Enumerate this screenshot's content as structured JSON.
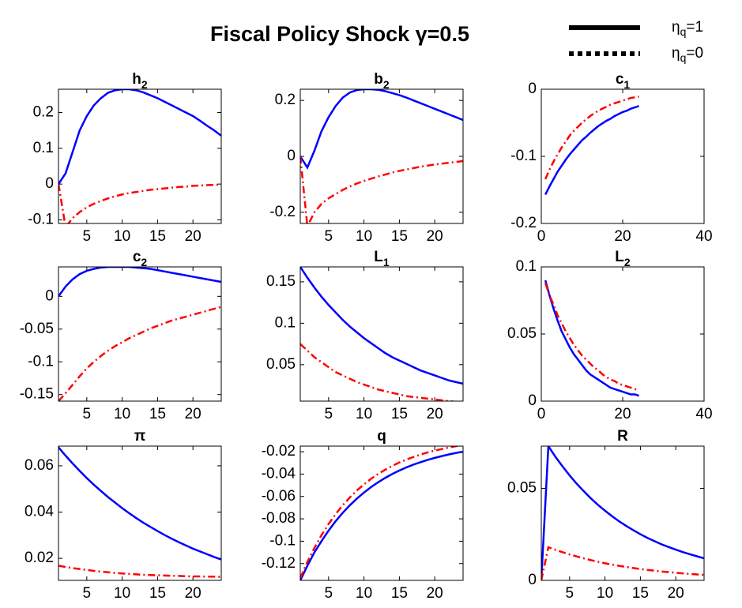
{
  "title": "Fiscal Policy Shock γ=0.5",
  "legend": [
    {
      "text": "η",
      "sub": "q",
      "suffix": "=1",
      "style": "solid",
      "color": "#000000"
    },
    {
      "text": "η",
      "sub": "q",
      "suffix": "=0",
      "style": "dotted",
      "color": "#000000"
    }
  ],
  "chart_data": [
    {
      "type": "line",
      "title": {
        "text": "h",
        "sub": "2"
      },
      "x": [
        1,
        2,
        3,
        4,
        5,
        6,
        7,
        8,
        9,
        10,
        11,
        12,
        13,
        14,
        15,
        16,
        17,
        18,
        19,
        20,
        21,
        22,
        23,
        24
      ],
      "xlim": [
        1,
        24
      ],
      "xticks": [
        5,
        10,
        15,
        20
      ],
      "ylim": [
        -0.11,
        0.265
      ],
      "yticks": [
        -0.1,
        0,
        0.1,
        0.2
      ],
      "series": [
        {
          "color": "#0000ff",
          "dash": "solid",
          "values": [
            0,
            0.03,
            0.09,
            0.15,
            0.19,
            0.22,
            0.24,
            0.255,
            0.262,
            0.265,
            0.265,
            0.262,
            0.256,
            0.248,
            0.24,
            0.23,
            0.22,
            0.21,
            0.2,
            0.19,
            0.177,
            0.163,
            0.15,
            0.135
          ]
        },
        {
          "color": "#ff0000",
          "dash": "dashdot",
          "values": [
            0,
            -0.12,
            -0.095,
            -0.078,
            -0.065,
            -0.055,
            -0.047,
            -0.04,
            -0.034,
            -0.029,
            -0.025,
            -0.022,
            -0.019,
            -0.016,
            -0.014,
            -0.012,
            -0.01,
            -0.008,
            -0.007,
            -0.005,
            -0.004,
            -0.003,
            -0.002,
            -0.002
          ]
        }
      ]
    },
    {
      "type": "line",
      "title": {
        "text": "b",
        "sub": "2"
      },
      "x": [
        1,
        2,
        3,
        4,
        5,
        6,
        7,
        8,
        9,
        10,
        11,
        12,
        13,
        14,
        15,
        16,
        17,
        18,
        19,
        20,
        21,
        22,
        23,
        24
      ],
      "xlim": [
        1,
        24
      ],
      "xticks": [
        5,
        10,
        15,
        20
      ],
      "ylim": [
        -0.24,
        0.24
      ],
      "yticks": [
        -0.2,
        0,
        0.2
      ],
      "series": [
        {
          "color": "#0000ff",
          "dash": "solid",
          "values": [
            0,
            -0.04,
            0.02,
            0.09,
            0.14,
            0.18,
            0.21,
            0.228,
            0.237,
            0.24,
            0.24,
            0.238,
            0.233,
            0.226,
            0.219,
            0.21,
            0.2,
            0.19,
            0.18,
            0.17,
            0.16,
            0.15,
            0.14,
            0.13
          ]
        },
        {
          "color": "#ff0000",
          "dash": "dashdot",
          "values": [
            0,
            -0.25,
            -0.2,
            -0.17,
            -0.15,
            -0.135,
            -0.12,
            -0.108,
            -0.097,
            -0.088,
            -0.08,
            -0.072,
            -0.065,
            -0.058,
            -0.052,
            -0.047,
            -0.042,
            -0.037,
            -0.033,
            -0.029,
            -0.026,
            -0.023,
            -0.02,
            -0.017
          ]
        }
      ]
    },
    {
      "type": "line",
      "title": {
        "text": "c",
        "sub": "1"
      },
      "x": [
        1,
        2,
        3,
        4,
        5,
        6,
        7,
        8,
        9,
        10,
        11,
        12,
        13,
        14,
        15,
        16,
        17,
        18,
        19,
        20,
        21,
        22,
        23,
        24
      ],
      "xlim": [
        0,
        40
      ],
      "xticks": [
        0,
        20,
        40
      ],
      "ylim": [
        -0.2,
        0
      ],
      "yticks": [
        -0.2,
        -0.1,
        0
      ],
      "series": [
        {
          "color": "#0000ff",
          "dash": "solid",
          "values": [
            -0.157,
            -0.145,
            -0.134,
            -0.123,
            -0.114,
            -0.105,
            -0.097,
            -0.09,
            -0.083,
            -0.076,
            -0.071,
            -0.065,
            -0.06,
            -0.055,
            -0.051,
            -0.047,
            -0.044,
            -0.04,
            -0.037,
            -0.034,
            -0.032,
            -0.029,
            -0.027,
            -0.025
          ]
        },
        {
          "color": "#ff0000",
          "dash": "dashdot",
          "values": [
            -0.134,
            -0.12,
            -0.108,
            -0.097,
            -0.087,
            -0.078,
            -0.069,
            -0.062,
            -0.056,
            -0.05,
            -0.045,
            -0.04,
            -0.036,
            -0.032,
            -0.029,
            -0.026,
            -0.023,
            -0.021,
            -0.019,
            -0.017,
            -0.015,
            -0.013,
            -0.012,
            -0.011
          ]
        }
      ]
    },
    {
      "type": "line",
      "title": {
        "text": "c",
        "sub": "2"
      },
      "x": [
        1,
        2,
        3,
        4,
        5,
        6,
        7,
        8,
        9,
        10,
        11,
        12,
        13,
        14,
        15,
        16,
        17,
        18,
        19,
        20,
        21,
        22,
        23,
        24
      ],
      "xlim": [
        1,
        24
      ],
      "xticks": [
        5,
        10,
        15,
        20
      ],
      "ylim": [
        -0.16,
        0.045
      ],
      "yticks": [
        -0.15,
        -0.1,
        -0.05,
        0
      ],
      "series": [
        {
          "color": "#0000ff",
          "dash": "solid",
          "values": [
            0,
            0.015,
            0.026,
            0.034,
            0.039,
            0.042,
            0.044,
            0.045,
            0.045,
            0.045,
            0.045,
            0.044,
            0.043,
            0.042,
            0.04,
            0.038,
            0.036,
            0.034,
            0.032,
            0.03,
            0.028,
            0.026,
            0.024,
            0.022
          ]
        },
        {
          "color": "#ff0000",
          "dash": "dashdot",
          "values": [
            -0.16,
            -0.148,
            -0.135,
            -0.122,
            -0.11,
            -0.1,
            -0.091,
            -0.083,
            -0.076,
            -0.07,
            -0.064,
            -0.059,
            -0.054,
            -0.049,
            -0.045,
            -0.041,
            -0.037,
            -0.034,
            -0.031,
            -0.028,
            -0.025,
            -0.022,
            -0.019,
            -0.016
          ]
        }
      ]
    },
    {
      "type": "line",
      "title": {
        "text": "L",
        "sub": "1"
      },
      "x": [
        1,
        2,
        3,
        4,
        5,
        6,
        7,
        8,
        9,
        10,
        11,
        12,
        13,
        14,
        15,
        16,
        17,
        18,
        19,
        20,
        21,
        22,
        23,
        24
      ],
      "xlim": [
        1,
        24
      ],
      "xticks": [
        5,
        10,
        15,
        20
      ],
      "ylim": [
        0.006,
        0.168
      ],
      "yticks": [
        0.05,
        0.1,
        0.15
      ],
      "series": [
        {
          "color": "#0000ff",
          "dash": "solid",
          "values": [
            0.168,
            0.155,
            0.143,
            0.132,
            0.122,
            0.113,
            0.104,
            0.096,
            0.089,
            0.082,
            0.076,
            0.07,
            0.064,
            0.059,
            0.055,
            0.051,
            0.047,
            0.043,
            0.04,
            0.037,
            0.034,
            0.031,
            0.029,
            0.027
          ]
        },
        {
          "color": "#ff0000",
          "dash": "dashdot",
          "values": [
            0.075,
            0.067,
            0.059,
            0.053,
            0.047,
            0.041,
            0.037,
            0.033,
            0.029,
            0.026,
            0.023,
            0.02,
            0.018,
            0.016,
            0.014,
            0.012,
            0.011,
            0.01,
            0.009,
            0.008,
            0.007,
            0.006,
            0.005,
            0.005
          ]
        }
      ]
    },
    {
      "type": "line",
      "title": {
        "text": "L",
        "sub": "2"
      },
      "x": [
        1,
        2,
        3,
        4,
        5,
        6,
        7,
        8,
        9,
        10,
        11,
        12,
        13,
        14,
        15,
        16,
        17,
        18,
        19,
        20,
        21,
        22,
        23,
        24
      ],
      "xlim": [
        0,
        40
      ],
      "xticks": [
        0,
        20,
        40
      ],
      "ylim": [
        0,
        0.1
      ],
      "yticks": [
        0,
        0.05,
        0.1
      ],
      "series": [
        {
          "color": "#0000ff",
          "dash": "solid",
          "values": [
            0.09,
            0.079,
            0.069,
            0.06,
            0.052,
            0.046,
            0.04,
            0.035,
            0.031,
            0.027,
            0.023,
            0.02,
            0.018,
            0.016,
            0.014,
            0.012,
            0.01,
            0.009,
            0.008,
            0.007,
            0.006,
            0.005,
            0.005,
            0.004
          ]
        },
        {
          "color": "#ff0000",
          "dash": "dashdot",
          "values": [
            0.088,
            0.079,
            0.072,
            0.064,
            0.058,
            0.052,
            0.047,
            0.042,
            0.038,
            0.034,
            0.031,
            0.028,
            0.025,
            0.023,
            0.02,
            0.018,
            0.016,
            0.015,
            0.013,
            0.012,
            0.011,
            0.01,
            0.009,
            0.008
          ]
        }
      ]
    },
    {
      "type": "line",
      "title": {
        "text": "π",
        "sub": ""
      },
      "x": [
        1,
        2,
        3,
        4,
        5,
        6,
        7,
        8,
        9,
        10,
        11,
        12,
        13,
        14,
        15,
        16,
        17,
        18,
        19,
        20,
        21,
        22,
        23,
        24
      ],
      "xlim": [
        1,
        24
      ],
      "xticks": [
        5,
        10,
        15,
        20
      ],
      "ylim": [
        0.0105,
        0.0685
      ],
      "yticks": [
        0.02,
        0.04,
        0.06
      ],
      "series": [
        {
          "color": "#0000ff",
          "dash": "solid",
          "values": [
            0.068,
            0.0644,
            0.061,
            0.0578,
            0.0547,
            0.0518,
            0.0491,
            0.0465,
            0.0441,
            0.0417,
            0.0395,
            0.0374,
            0.0354,
            0.0336,
            0.0318,
            0.0301,
            0.0285,
            0.027,
            0.0256,
            0.0242,
            0.023,
            0.0218,
            0.0206,
            0.0195
          ]
        },
        {
          "color": "#ff0000",
          "dash": "dashdot",
          "values": [
            0.0168,
            0.0163,
            0.0158,
            0.0154,
            0.015,
            0.0146,
            0.0143,
            0.014,
            0.0137,
            0.0135,
            0.0133,
            0.0131,
            0.0129,
            0.0128,
            0.0127,
            0.0126,
            0.0125,
            0.0124,
            0.0123,
            0.0122,
            0.0122,
            0.0121,
            0.0121,
            0.012
          ]
        }
      ]
    },
    {
      "type": "line",
      "title": {
        "text": "q",
        "sub": ""
      },
      "x": [
        1,
        2,
        3,
        4,
        5,
        6,
        7,
        8,
        9,
        10,
        11,
        12,
        13,
        14,
        15,
        16,
        17,
        18,
        19,
        20,
        21,
        22,
        23,
        24
      ],
      "xlim": [
        1,
        24
      ],
      "xticks": [
        5,
        10,
        15,
        20
      ],
      "ylim": [
        -0.135,
        -0.015
      ],
      "yticks": [
        -0.12,
        -0.1,
        -0.08,
        -0.06,
        -0.04,
        -0.02
      ],
      "series": [
        {
          "color": "#0000ff",
          "dash": "solid",
          "values": [
            -0.135,
            -0.122,
            -0.11,
            -0.0999,
            -0.0905,
            -0.0821,
            -0.0746,
            -0.0679,
            -0.0619,
            -0.0565,
            -0.0516,
            -0.0473,
            -0.0434,
            -0.0399,
            -0.0368,
            -0.034,
            -0.0315,
            -0.0293,
            -0.0273,
            -0.0255,
            -0.0239,
            -0.0224,
            -0.0211,
            -0.02
          ]
        },
        {
          "color": "#ff0000",
          "dash": "dashdot",
          "values": [
            -0.133,
            -0.1186,
            -0.106,
            -0.0946,
            -0.0846,
            -0.0757,
            -0.0678,
            -0.0609,
            -0.0546,
            -0.0492,
            -0.0442,
            -0.0399,
            -0.0361,
            -0.0327,
            -0.0296,
            -0.027,
            -0.0247,
            -0.0225,
            -0.0206,
            -0.019,
            -0.0176,
            -0.0162,
            -0.015,
            -0.014
          ]
        }
      ]
    },
    {
      "type": "line",
      "title": {
        "text": "R",
        "sub": ""
      },
      "x": [
        1,
        2,
        3,
        4,
        5,
        6,
        7,
        8,
        9,
        10,
        11,
        12,
        13,
        14,
        15,
        16,
        17,
        18,
        19,
        20,
        21,
        22,
        23,
        24
      ],
      "xlim": [
        1,
        24
      ],
      "xticks": [
        5,
        10,
        15,
        20
      ],
      "ylim": [
        0,
        0.073
      ],
      "yticks": [
        0,
        0.05
      ],
      "series": [
        {
          "color": "#0000ff",
          "dash": "solid",
          "values": [
            0,
            0.073,
            0.0672,
            0.062,
            0.0571,
            0.0526,
            0.0485,
            0.0446,
            0.0411,
            0.0379,
            0.0349,
            0.0321,
            0.0296,
            0.0273,
            0.0251,
            0.0231,
            0.0213,
            0.0196,
            0.0181,
            0.0167,
            0.0154,
            0.0142,
            0.0131,
            0.012
          ]
        },
        {
          "color": "#ff0000",
          "dash": "dashdot",
          "values": [
            0,
            0.018,
            0.0166,
            0.0153,
            0.0141,
            0.013,
            0.012,
            0.011,
            0.0101,
            0.0093,
            0.0086,
            0.0079,
            0.0073,
            0.0067,
            0.0062,
            0.0057,
            0.0053,
            0.0048,
            0.0045,
            0.0041,
            0.0038,
            0.0035,
            0.0032,
            0.003
          ]
        }
      ]
    }
  ]
}
